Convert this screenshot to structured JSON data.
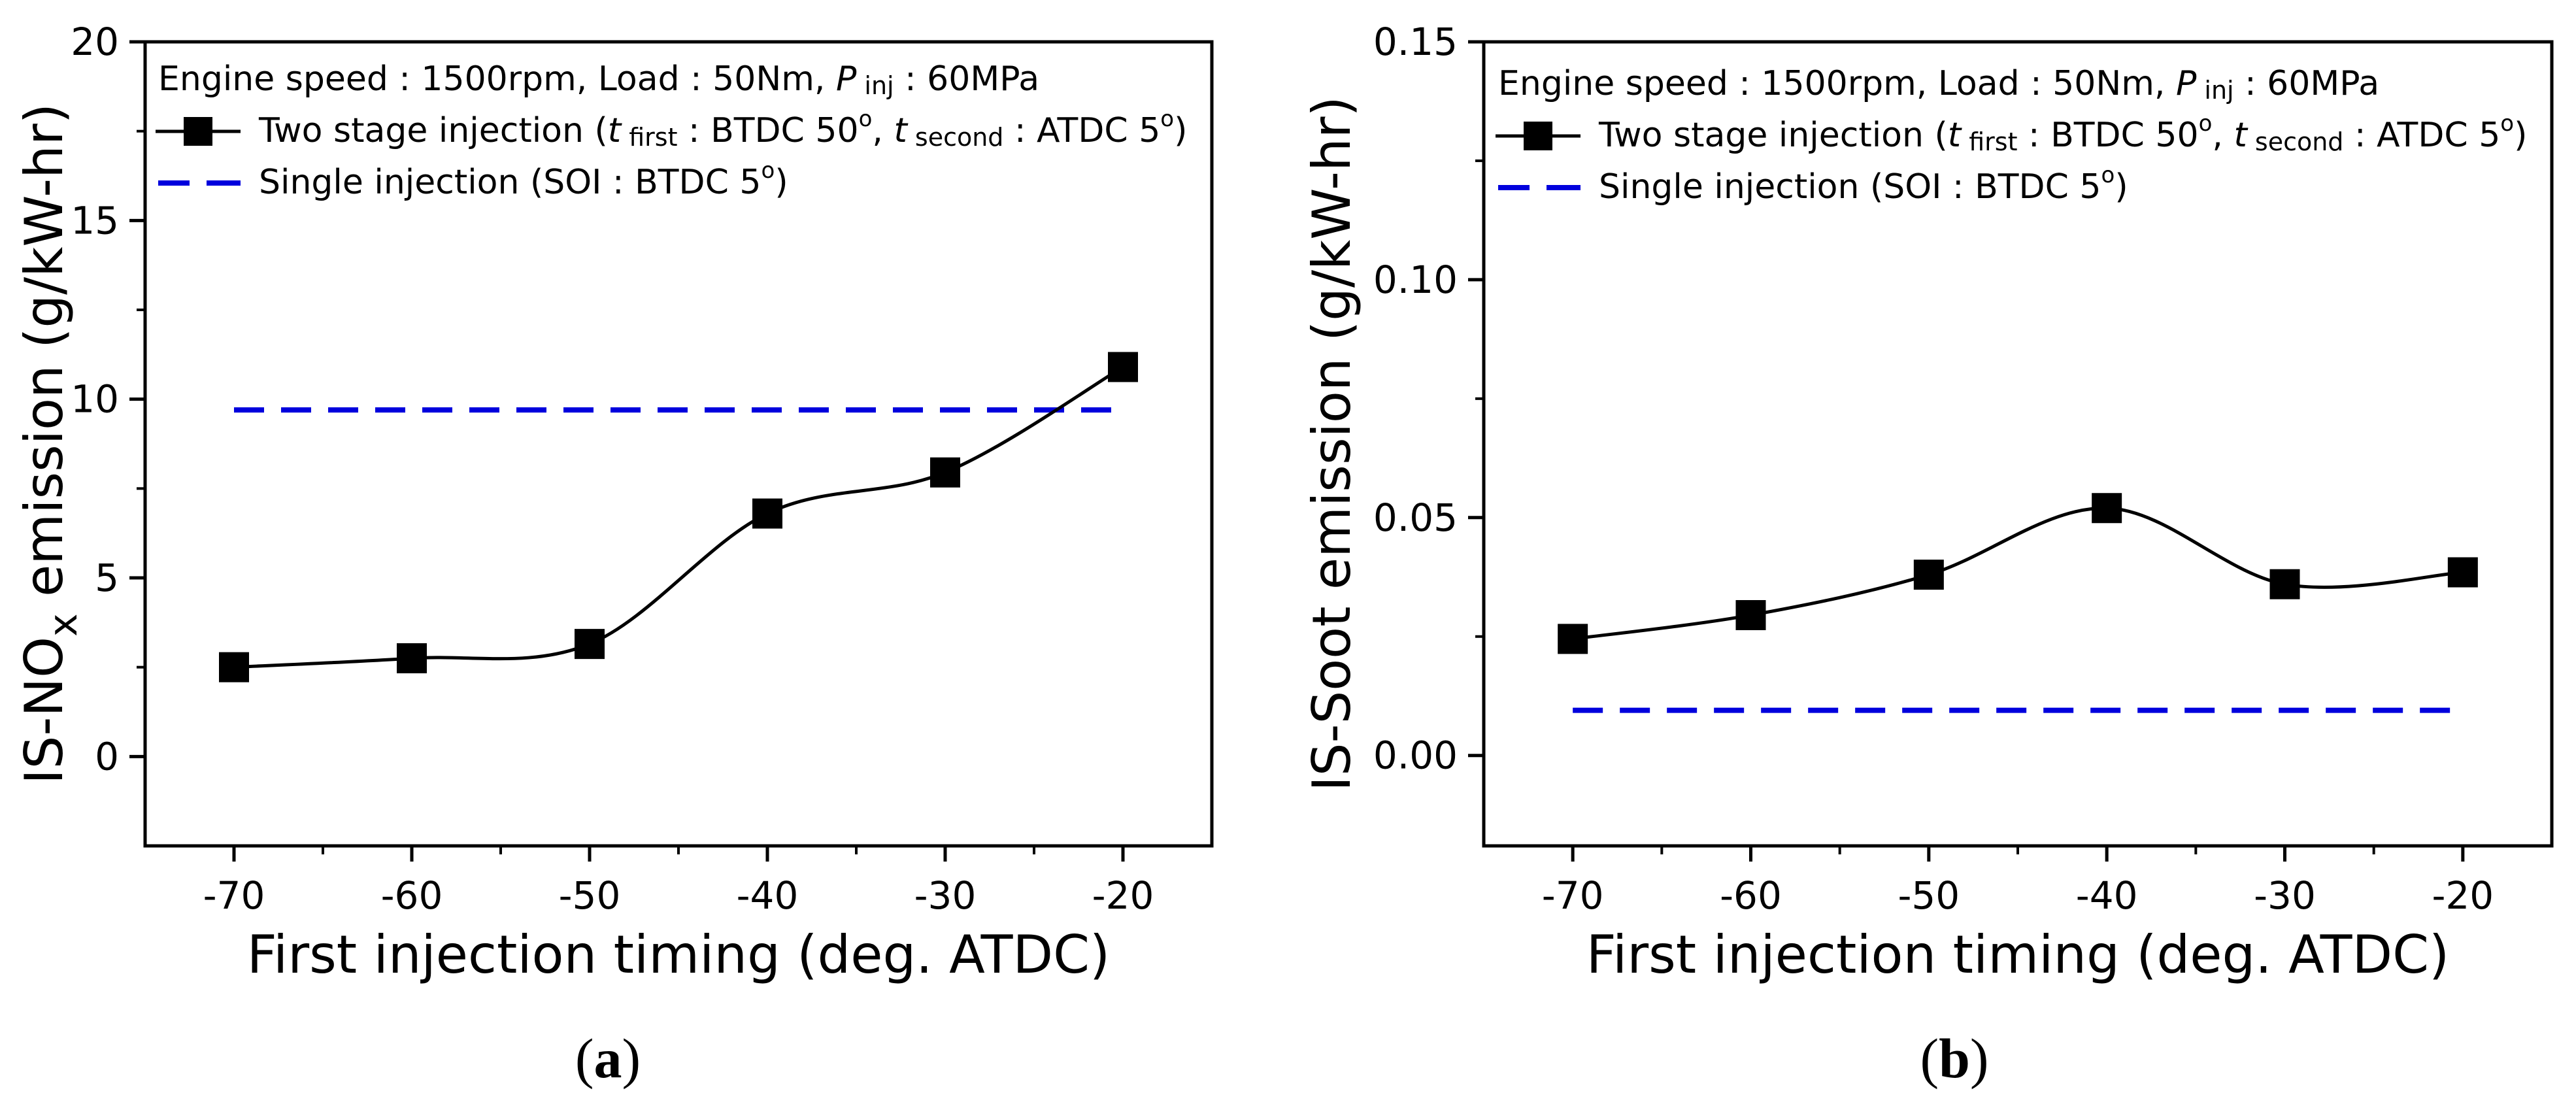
{
  "chart_data": [
    {
      "type": "line",
      "panel_label": "a",
      "xlabel": "First injection timing (deg. ATDC)",
      "ylabel_prefix": "IS-NO",
      "ylabel_subscript": "x",
      "ylabel_suffix": " emission (g/kW-hr)",
      "xlim": [
        -75,
        -15
      ],
      "ylim": [
        -2.5,
        20
      ],
      "xticks": [
        -70,
        -60,
        -50,
        -40,
        -30,
        -20
      ],
      "yticks": [
        0,
        5,
        10,
        15,
        20
      ],
      "ytick_labels": [
        "0",
        "5",
        "10",
        "15",
        "20"
      ],
      "legend": {
        "header": {
          "prefix": "Engine speed : 1500rpm, Load : 50Nm, ",
          "p": "P",
          "sub": "inj",
          "suffix": " : 60MPa"
        },
        "two_stage": {
          "prefix": "Two stage injection (",
          "t1": "t",
          "t1_sub": "first",
          "mid": " : BTDC 50",
          "mid_sup": "o",
          "sep": ", ",
          "t2": "t",
          "t2_sub": "second",
          "end": " : ATDC 5",
          "end_sup": "o",
          "close": ")"
        },
        "single": {
          "text": "Single injection (SOI : BTDC 5",
          "sup": "o",
          "close": ")"
        }
      },
      "series": [
        {
          "name": "Two stage injection",
          "x": [
            -70,
            -60,
            -50,
            -40,
            -30,
            -20
          ],
          "y": [
            2.5,
            2.75,
            3.15,
            6.8,
            7.95,
            10.9
          ],
          "color": "#000000",
          "marker": "square",
          "line": "smooth"
        },
        {
          "name": "Single injection",
          "x": [
            -70,
            -20
          ],
          "y": [
            9.7,
            9.7
          ],
          "color": "#0000dd",
          "line": "dashed"
        }
      ]
    },
    {
      "type": "line",
      "panel_label": "b",
      "xlabel": "First injection timing (deg. ATDC)",
      "ylabel": "IS-Soot emission (g/kW-hr)",
      "xlim": [
        -75,
        -15
      ],
      "ylim": [
        -0.019,
        0.15
      ],
      "xticks": [
        -70,
        -60,
        -50,
        -40,
        -30,
        -20
      ],
      "yticks": [
        0,
        0.05,
        0.1,
        0.15
      ],
      "ytick_labels": [
        "0.00",
        "0.05",
        "0.10",
        "0.15"
      ],
      "legend": {
        "header": {
          "prefix": "Engine speed : 1500rpm, Load : 50Nm, ",
          "p": "P",
          "sub": "inj",
          "suffix": " : 60MPa"
        },
        "two_stage": {
          "prefix": "Two stage injection (",
          "t1": "t",
          "t1_sub": "first",
          "mid": " : BTDC 50",
          "mid_sup": "o",
          "sep": ", ",
          "t2": "t",
          "t2_sub": "second",
          "end": " : ATDC 5",
          "end_sup": "o",
          "close": ")"
        },
        "single": {
          "text": "Single injection (SOI : BTDC 5",
          "sup": "o",
          "close": ")"
        }
      },
      "series": [
        {
          "name": "Two stage injection",
          "x": [
            -70,
            -60,
            -50,
            -40,
            -30,
            -20
          ],
          "y": [
            0.0245,
            0.0295,
            0.038,
            0.052,
            0.036,
            0.0385
          ],
          "color": "#000000",
          "marker": "square",
          "line": "smooth"
        },
        {
          "name": "Single injection",
          "x": [
            -70,
            -20
          ],
          "y": [
            0.0095,
            0.0095
          ],
          "color": "#0000dd",
          "line": "dashed"
        }
      ]
    }
  ]
}
